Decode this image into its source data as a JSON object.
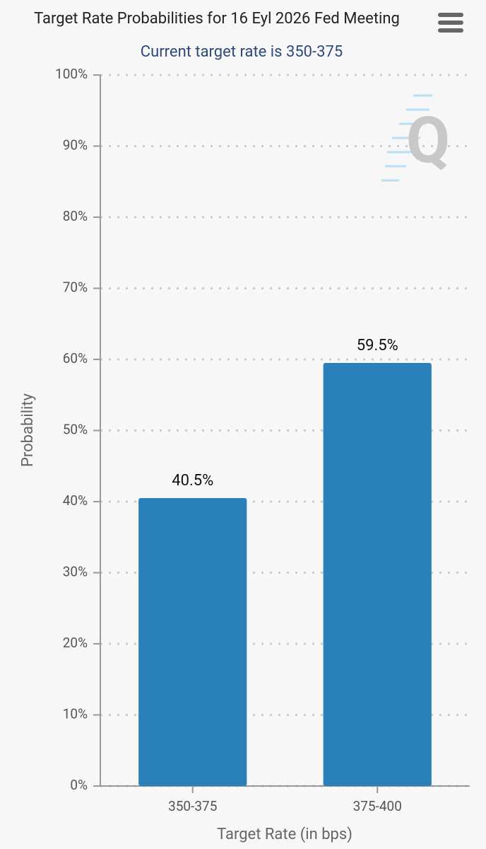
{
  "chart_data": {
    "type": "bar",
    "title": "Target Rate Probabilities for 16 Eyl 2026 Fed Meeting",
    "subtitle": "Current target rate is 350-375",
    "x_label": "Target Rate (in bps)",
    "y_label": "Probability",
    "categories": [
      "350-375",
      "375-400"
    ],
    "values": [
      40.5,
      59.5
    ],
    "value_labels": [
      "40.5%",
      "59.5%"
    ],
    "color": "#2a80b9",
    "ylim": [
      0,
      100
    ],
    "yticks": [
      {
        "value": 0,
        "label": "0%"
      },
      {
        "value": 10,
        "label": "10%"
      },
      {
        "value": 20,
        "label": "20%"
      },
      {
        "value": 30,
        "label": "30%"
      },
      {
        "value": 40,
        "label": "40%"
      },
      {
        "value": 50,
        "label": "50%"
      },
      {
        "value": 60,
        "label": "60%"
      },
      {
        "value": 70,
        "label": "70%"
      },
      {
        "value": 80,
        "label": "80%"
      },
      {
        "value": 90,
        "label": "90%"
      },
      {
        "value": 100,
        "label": "100%"
      }
    ],
    "grid": true
  }
}
